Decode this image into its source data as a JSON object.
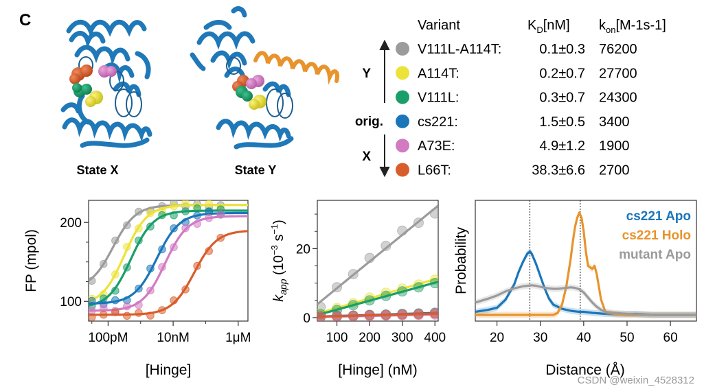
{
  "figure": {
    "panel_label": "C",
    "states": {
      "x_label": "State X",
      "y_label": "State Y"
    },
    "table": {
      "headers": {
        "variant": "Variant",
        "kd": "K",
        "kd_sub": "D",
        "kd_unit": "[nM]",
        "kon": "k",
        "kon_sub": "on",
        "kon_unit": "[M-1s-1]"
      },
      "side_labels": {
        "y": "Y",
        "orig": "orig.",
        "x": "X"
      },
      "rows": [
        {
          "name": "V111L-A114T:",
          "kd": "0.1±0.3",
          "kon": "76200",
          "color": "#9b9b9b"
        },
        {
          "name": "A114T:",
          "kd": "0.2±0.7",
          "kon": "27700",
          "color": "#ece33a"
        },
        {
          "name": "V111L:",
          "kd": "0.3±0.7",
          "kon": "24300",
          "color": "#1a9e6a"
        },
        {
          "name": "cs221:",
          "kd": "1.5±0.5",
          "kon": "3400",
          "color": "#1a76b9"
        },
        {
          "name": "A73E:",
          "kd": "4.9±1.2",
          "kon": "1900",
          "color": "#d27ac2"
        },
        {
          "name": "L66T:",
          "kd": "38.3±6.6",
          "kon": "2700",
          "color": "#d95c2b"
        }
      ]
    },
    "colors": {
      "protein": "#1f78b8",
      "helix_orange": "#e8932c",
      "sphere_orange": "#d95c2b",
      "sphere_pink": "#d27ac2",
      "sphere_green": "#1a9e6a",
      "sphere_yellow": "#ece33a"
    },
    "watermark": "CSDN @weixin_4528312"
  },
  "chart_data": [
    {
      "type": "scatter",
      "title": "",
      "ylabel": "FP (mpol)",
      "xlabel": "[Hinge]",
      "x_scale": "log",
      "xtick_labels": [
        "100pM",
        "10nM",
        "1μM"
      ],
      "ytick_labels": [
        "100",
        "200"
      ],
      "ylim": [
        75,
        228
      ],
      "series": [
        {
          "name": "V111L-A114T",
          "color": "#9b9b9b",
          "ec50_log": -9.85,
          "min": 115,
          "max": 222
        },
        {
          "name": "A114T",
          "color": "#ece33a",
          "ec50_log": -9.5,
          "min": 95,
          "max": 222
        },
        {
          "name": "V111L",
          "color": "#1a9e6a",
          "ec50_log": -9.3,
          "min": 92,
          "max": 215
        },
        {
          "name": "cs221",
          "color": "#1a76b9",
          "ec50_log": -8.5,
          "min": 97,
          "max": 212
        },
        {
          "name": "A73E",
          "color": "#d27ac2",
          "ec50_log": -8.25,
          "min": 88,
          "max": 208
        },
        {
          "name": "L66T",
          "color": "#d95c2b",
          "ec50_log": -7.35,
          "min": 83,
          "max": 190
        }
      ]
    },
    {
      "type": "line",
      "ylabel": "k_app (10^-3 s^-1)",
      "ylabel_main": "k",
      "ylabel_sub": "app",
      "ylabel_rest": " (10",
      "ylabel_exp": "−3",
      "ylabel_tail": " s",
      "ylabel_exp2": "−1",
      "ylabel_close": ")",
      "xlabel": "[Hinge] (nM)",
      "xlim": [
        40,
        410
      ],
      "ylim": [
        -1,
        34
      ],
      "xtick_labels": [
        "100",
        "200",
        "300",
        "400"
      ],
      "ytick_labels": [
        "0",
        "20"
      ],
      "series": [
        {
          "name": "V111L-A114T",
          "color": "#9b9b9b",
          "x": [
            50,
            100,
            150,
            200,
            250,
            300,
            350,
            400
          ],
          "y": [
            3.1,
            8.8,
            12.6,
            17.3,
            20.8,
            25.2,
            27.5,
            30.2
          ]
        },
        {
          "name": "A114T",
          "color": "#ece33a",
          "x": [
            50,
            100,
            150,
            200,
            250,
            300,
            350,
            400
          ],
          "y": [
            1.2,
            2.8,
            4.2,
            5.8,
            7.2,
            8.4,
            9.6,
            11.0
          ]
        },
        {
          "name": "V111L",
          "color": "#1a9e6a",
          "x": [
            50,
            100,
            150,
            200,
            250,
            300,
            350,
            400
          ],
          "y": [
            1.0,
            2.2,
            3.6,
            5.0,
            6.3,
            7.6,
            8.8,
            10.0
          ]
        },
        {
          "name": "cs221",
          "color": "#1a76b9",
          "x": [
            50,
            100,
            150,
            200,
            250,
            300,
            350,
            400
          ],
          "y": [
            0.3,
            0.5,
            0.6,
            0.8,
            0.9,
            1.1,
            1.2,
            1.4
          ]
        },
        {
          "name": "A73E",
          "color": "#d27ac2",
          "x": [
            50,
            100,
            150,
            200,
            250,
            300,
            350,
            400
          ],
          "y": [
            0.2,
            0.3,
            0.4,
            0.5,
            0.6,
            0.7,
            0.8,
            0.9
          ]
        },
        {
          "name": "L66T",
          "color": "#d95c2b",
          "x": [
            50,
            100,
            150,
            200,
            250,
            300,
            350,
            400
          ],
          "y": [
            0.3,
            0.4,
            0.5,
            0.7,
            0.8,
            0.9,
            1.0,
            1.2
          ]
        }
      ]
    },
    {
      "type": "line",
      "ylabel": "Probability",
      "xlabel": "Distance (Å)",
      "xlim": [
        15,
        66
      ],
      "ylim": [
        0,
        1.0
      ],
      "xticks": [
        20,
        30,
        40,
        50,
        60
      ],
      "xtick_labels": [
        "20",
        "30",
        "40",
        "50",
        "60"
      ],
      "vlines": [
        27.6,
        39.2
      ],
      "legend": [
        {
          "label": "cs221 Apo",
          "color": "#1a76b9"
        },
        {
          "label": "cs221 Holo",
          "color": "#e8932c"
        },
        {
          "label": "mutant Apo",
          "color": "#9b9b9b"
        }
      ],
      "series": [
        {
          "name": "cs221 Apo",
          "color": "#1a76b9",
          "x": [
            15,
            18,
            20,
            22,
            24,
            25,
            26,
            27,
            27.6,
            28,
            29,
            30,
            31,
            32,
            33,
            34,
            35,
            36,
            37,
            38,
            39,
            40,
            42,
            45,
            48,
            52,
            56,
            60,
            66
          ],
          "y": [
            0.03,
            0.05,
            0.07,
            0.15,
            0.3,
            0.42,
            0.52,
            0.6,
            0.62,
            0.6,
            0.5,
            0.38,
            0.26,
            0.16,
            0.1,
            0.08,
            0.06,
            0.05,
            0.04,
            0.035,
            0.03,
            0.03,
            0.02,
            0.01,
            0.005,
            0.01,
            0.0,
            0.0,
            0.0
          ]
        },
        {
          "name": "cs221 Holo",
          "color": "#e8932c",
          "x": [
            15,
            20,
            25,
            30,
            33,
            34,
            35,
            36,
            37,
            37.5,
            38,
            38.5,
            39,
            39.5,
            40,
            40.5,
            41,
            42,
            42.5,
            43,
            44,
            45,
            47,
            50,
            55,
            60,
            66
          ],
          "y": [
            0.0,
            0.0,
            0.0,
            0.0,
            0.0,
            0.02,
            0.1,
            0.28,
            0.55,
            0.72,
            0.86,
            0.95,
            1.0,
            0.95,
            0.82,
            0.62,
            0.48,
            0.45,
            0.48,
            0.4,
            0.15,
            0.03,
            0.01,
            0.0,
            0.0,
            0.0,
            0.0
          ]
        },
        {
          "name": "mutant Apo",
          "color": "#9b9b9b",
          "x": [
            15,
            18,
            20,
            22,
            24,
            26,
            27,
            28,
            29,
            30,
            31,
            32,
            33,
            34,
            35,
            36,
            37,
            38,
            39,
            40,
            41,
            42,
            43,
            44,
            45,
            47,
            50,
            55,
            60,
            66
          ],
          "y": [
            0.12,
            0.16,
            0.19,
            0.23,
            0.26,
            0.28,
            0.285,
            0.29,
            0.285,
            0.275,
            0.265,
            0.26,
            0.255,
            0.255,
            0.26,
            0.265,
            0.27,
            0.265,
            0.25,
            0.22,
            0.17,
            0.12,
            0.08,
            0.05,
            0.03,
            0.02,
            0.01,
            0.0,
            0.0,
            0.0
          ]
        }
      ]
    }
  ]
}
